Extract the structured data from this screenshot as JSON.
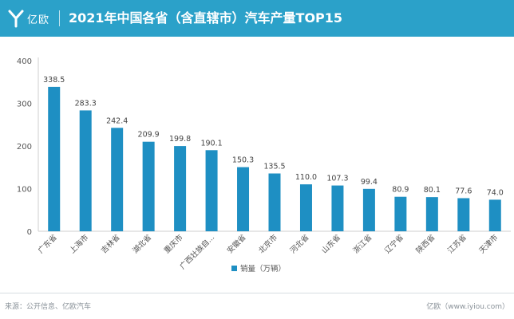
{
  "brand": {
    "logo_text": "亿欧"
  },
  "header": {
    "title": "2021年中国各省（含直辖市）汽车产量TOP15"
  },
  "colors": {
    "header_bg": "#2ba1c9",
    "bar": "#1e8fc3",
    "axis_text": "#555555",
    "grid": "#e6e6e6"
  },
  "chart_data": {
    "type": "bar",
    "title": "2021年中国各省（含直辖市）汽车产量TOP15",
    "categories": [
      "广东省",
      "上海市",
      "吉林省",
      "湖北省",
      "重庆市",
      "广西壮族自...",
      "安徽省",
      "北京市",
      "河北省",
      "山东省",
      "浙江省",
      "辽宁省",
      "陕西省",
      "江苏省",
      "天津市"
    ],
    "series": [
      {
        "name": "销量（万辆）",
        "values": [
          338.5,
          283.3,
          242.4,
          209.9,
          199.8,
          190.1,
          150.3,
          135.5,
          110.0,
          107.3,
          99.4,
          80.9,
          80.1,
          77.6,
          74.0
        ]
      }
    ],
    "value_labels": [
      "338.5",
      "283.3",
      "242.4",
      "209.9",
      "199.8",
      "190.1",
      "150.3",
      "135.5",
      "110.0",
      "107.3",
      "99.4",
      "80.9",
      "80.1",
      "77.6",
      "74.0"
    ],
    "y_ticks": [
      "0",
      "100",
      "200",
      "300",
      "400"
    ],
    "ylim": [
      0,
      400
    ],
    "grid": false,
    "legend": "bottom-center",
    "xlabel": "",
    "ylabel": ""
  },
  "footer": {
    "source": "来源：公开信息、亿欧汽车",
    "brand_site": "亿欧（www.iyiou.com）"
  }
}
